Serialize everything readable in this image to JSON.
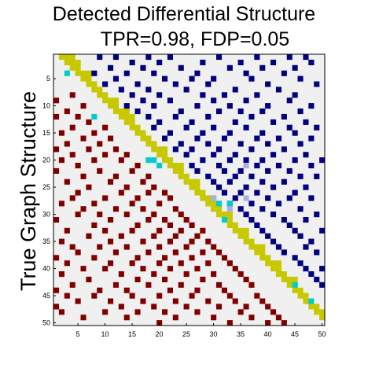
{
  "chart_data": {
    "type": "heatmap",
    "title_lines": [
      "Detected Differential Structure",
      "TPR=0.98, FDP=0.05"
    ],
    "xlabel": "",
    "ylabel": "True Graph Structure",
    "size": 50,
    "x_ticks": [
      5,
      10,
      15,
      20,
      25,
      30,
      35,
      40,
      45,
      50
    ],
    "y_ticks": [
      5,
      10,
      15,
      20,
      25,
      30,
      35,
      40,
      45,
      50
    ],
    "colors": {
      "background": "#f0f0f0",
      "detected_edge": "#000080",
      "true_edge": "#800000",
      "diagonal": "#c8c800",
      "false_positive": "#00cccc",
      "missed": "#aab0e6"
    },
    "diagonal_band": [
      [
        2,
        3,
        4
      ],
      [
        3,
        4,
        5
      ],
      [
        4,
        5
      ],
      [
        5,
        6,
        7
      ],
      [
        6,
        7
      ],
      [
        7,
        8
      ],
      [
        8,
        9
      ],
      [
        9,
        10
      ],
      [
        10,
        11,
        12
      ],
      [
        11,
        12
      ],
      [
        12,
        13,
        14
      ],
      [
        13,
        14,
        15
      ],
      [
        14,
        15
      ],
      [
        15,
        16
      ],
      [
        16,
        17
      ],
      [
        17,
        18
      ],
      [
        18,
        19
      ],
      [
        19,
        20,
        21
      ],
      [
        20,
        21
      ],
      [
        21,
        22
      ],
      [
        22,
        23,
        24
      ],
      [
        23,
        24
      ],
      [
        24,
        25
      ],
      [
        25,
        26,
        27
      ],
      [
        26,
        27
      ],
      [
        27,
        28
      ],
      [
        28,
        29,
        30
      ],
      [
        29,
        30
      ],
      [
        30,
        31
      ],
      [
        31,
        32,
        33
      ],
      [
        32,
        33
      ],
      [
        33,
        34
      ],
      [
        34,
        35,
        36
      ],
      [
        35,
        36
      ],
      [
        36,
        37
      ],
      [
        37,
        38,
        39
      ],
      [
        38,
        39
      ],
      [
        39,
        40
      ],
      [
        40,
        41,
        42
      ],
      [
        41,
        42
      ],
      [
        42,
        43
      ],
      [
        43,
        44,
        45
      ],
      [
        44,
        45
      ],
      [
        45,
        46
      ],
      [
        46,
        47
      ],
      [
        47,
        48
      ],
      [
        48,
        49
      ],
      [
        49,
        50
      ],
      [
        50
      ],
      []
    ],
    "detected_cells": [
      [
        1,
        9
      ],
      [
        1,
        12
      ],
      [
        1,
        18
      ],
      [
        1,
        22
      ],
      [
        1,
        31
      ],
      [
        1,
        38
      ],
      [
        1,
        44
      ],
      [
        1,
        47
      ],
      [
        2,
        15
      ],
      [
        2,
        20
      ],
      [
        2,
        28
      ],
      [
        2,
        35
      ],
      [
        2,
        41
      ],
      [
        2,
        48
      ],
      [
        3,
        11
      ],
      [
        3,
        17
      ],
      [
        3,
        24
      ],
      [
        3,
        33
      ],
      [
        3,
        39
      ],
      [
        3,
        45
      ],
      [
        4,
        8
      ],
      [
        4,
        14
      ],
      [
        4,
        19
      ],
      [
        4,
        27
      ],
      [
        4,
        36
      ],
      [
        4,
        43
      ],
      [
        5,
        12
      ],
      [
        5,
        21
      ],
      [
        5,
        26
      ],
      [
        5,
        30
      ],
      [
        5,
        37
      ],
      [
        5,
        46
      ],
      [
        6,
        10
      ],
      [
        6,
        16
      ],
      [
        6,
        23
      ],
      [
        6,
        29
      ],
      [
        6,
        40
      ],
      [
        6,
        49
      ],
      [
        7,
        13
      ],
      [
        7,
        18
      ],
      [
        7,
        25
      ],
      [
        7,
        34
      ],
      [
        7,
        42
      ],
      [
        8,
        15
      ],
      [
        8,
        20
      ],
      [
        8,
        28
      ],
      [
        8,
        32
      ],
      [
        8,
        38
      ],
      [
        8,
        45
      ],
      [
        9,
        17
      ],
      [
        9,
        22
      ],
      [
        9,
        30
      ],
      [
        9,
        36
      ],
      [
        9,
        44
      ],
      [
        10,
        14
      ],
      [
        10,
        19
      ],
      [
        10,
        27
      ],
      [
        10,
        33
      ],
      [
        10,
        40
      ],
      [
        10,
        48
      ],
      [
        11,
        16
      ],
      [
        11,
        24
      ],
      [
        11,
        31
      ],
      [
        11,
        35
      ],
      [
        11,
        39
      ],
      [
        11,
        46
      ],
      [
        12,
        18
      ],
      [
        12,
        23
      ],
      [
        12,
        29
      ],
      [
        12,
        37
      ],
      [
        12,
        43
      ],
      [
        13,
        20
      ],
      [
        13,
        26
      ],
      [
        13,
        34
      ],
      [
        13,
        41
      ],
      [
        13,
        47
      ],
      [
        14,
        19
      ],
      [
        14,
        25
      ],
      [
        14,
        30
      ],
      [
        14,
        36
      ],
      [
        14,
        44
      ],
      [
        14,
        49
      ],
      [
        15,
        22
      ],
      [
        15,
        28
      ],
      [
        15,
        33
      ],
      [
        15,
        39
      ],
      [
        15,
        45
      ],
      [
        16,
        21
      ],
      [
        16,
        27
      ],
      [
        16,
        32
      ],
      [
        16,
        38
      ],
      [
        16,
        42
      ],
      [
        16,
        48
      ],
      [
        17,
        24
      ],
      [
        17,
        29
      ],
      [
        17,
        35
      ],
      [
        17,
        40
      ],
      [
        17,
        46
      ],
      [
        18,
        23
      ],
      [
        18,
        26
      ],
      [
        18,
        31
      ],
      [
        18,
        37
      ],
      [
        18,
        43
      ],
      [
        19,
        25
      ],
      [
        19,
        30
      ],
      [
        19,
        34
      ],
      [
        19,
        41
      ],
      [
        19,
        47
      ],
      [
        20,
        28
      ],
      [
        20,
        33
      ],
      [
        20,
        36
      ],
      [
        20,
        39
      ],
      [
        20,
        45
      ],
      [
        20,
        50
      ],
      [
        21,
        26
      ],
      [
        21,
        31
      ],
      [
        21,
        38
      ],
      [
        21,
        42
      ],
      [
        21,
        48
      ],
      [
        22,
        27
      ],
      [
        22,
        32
      ],
      [
        22,
        35
      ],
      [
        22,
        40
      ],
      [
        22,
        44
      ],
      [
        23,
        29
      ],
      [
        23,
        34
      ],
      [
        23,
        37
      ],
      [
        23,
        46
      ],
      [
        23,
        49
      ],
      [
        24,
        30
      ],
      [
        24,
        33
      ],
      [
        24,
        39
      ],
      [
        24,
        43
      ],
      [
        25,
        31
      ],
      [
        25,
        36
      ],
      [
        25,
        41
      ],
      [
        25,
        47
      ],
      [
        26,
        32
      ],
      [
        26,
        35
      ],
      [
        26,
        38
      ],
      [
        26,
        45
      ],
      [
        27,
        34
      ],
      [
        27,
        40
      ],
      [
        27,
        44
      ],
      [
        27,
        48
      ],
      [
        28,
        33
      ],
      [
        28,
        37
      ],
      [
        28,
        42
      ],
      [
        29,
        35
      ],
      [
        29,
        39
      ],
      [
        29,
        46
      ],
      [
        30,
        36
      ],
      [
        30,
        41
      ],
      [
        30,
        49
      ],
      [
        31,
        37
      ],
      [
        31,
        43
      ],
      [
        31,
        47
      ],
      [
        32,
        38
      ],
      [
        32,
        44
      ],
      [
        33,
        39
      ],
      [
        33,
        45
      ],
      [
        33,
        50
      ],
      [
        34,
        40
      ],
      [
        34,
        46
      ],
      [
        35,
        41
      ],
      [
        35,
        48
      ],
      [
        36,
        42
      ],
      [
        36,
        47
      ],
      [
        37,
        43
      ],
      [
        37,
        49
      ],
      [
        38,
        45
      ],
      [
        39,
        46
      ],
      [
        40,
        47
      ],
      [
        40,
        50
      ],
      [
        41,
        48
      ],
      [
        42,
        49
      ],
      [
        43,
        50
      ]
    ],
    "true_cells": [
      [
        9,
        1
      ],
      [
        12,
        1
      ],
      [
        18,
        1
      ],
      [
        22,
        1
      ],
      [
        31,
        1
      ],
      [
        38,
        1
      ],
      [
        44,
        1
      ],
      [
        47,
        1
      ],
      [
        15,
        2
      ],
      [
        20,
        2
      ],
      [
        28,
        2
      ],
      [
        35,
        2
      ],
      [
        41,
        2
      ],
      [
        48,
        2
      ],
      [
        11,
        3
      ],
      [
        17,
        3
      ],
      [
        24,
        3
      ],
      [
        33,
        3
      ],
      [
        39,
        3
      ],
      [
        45,
        3
      ],
      [
        8,
        4
      ],
      [
        14,
        4
      ],
      [
        19,
        4
      ],
      [
        27,
        4
      ],
      [
        36,
        4
      ],
      [
        43,
        4
      ],
      [
        12,
        5
      ],
      [
        21,
        5
      ],
      [
        26,
        5
      ],
      [
        30,
        5
      ],
      [
        37,
        5
      ],
      [
        46,
        5
      ],
      [
        10,
        6
      ],
      [
        16,
        6
      ],
      [
        23,
        6
      ],
      [
        29,
        6
      ],
      [
        40,
        6
      ],
      [
        49,
        6
      ],
      [
        13,
        7
      ],
      [
        18,
        7
      ],
      [
        25,
        7
      ],
      [
        34,
        7
      ],
      [
        42,
        7
      ],
      [
        15,
        8
      ],
      [
        20,
        8
      ],
      [
        28,
        8
      ],
      [
        32,
        8
      ],
      [
        38,
        8
      ],
      [
        45,
        8
      ],
      [
        17,
        9
      ],
      [
        22,
        9
      ],
      [
        30,
        9
      ],
      [
        36,
        9
      ],
      [
        44,
        9
      ],
      [
        14,
        10
      ],
      [
        19,
        10
      ],
      [
        27,
        10
      ],
      [
        33,
        10
      ],
      [
        40,
        10
      ],
      [
        48,
        10
      ],
      [
        16,
        11
      ],
      [
        24,
        11
      ],
      [
        31,
        11
      ],
      [
        35,
        11
      ],
      [
        39,
        11
      ],
      [
        46,
        11
      ],
      [
        18,
        12
      ],
      [
        23,
        12
      ],
      [
        29,
        12
      ],
      [
        37,
        12
      ],
      [
        43,
        12
      ],
      [
        20,
        13
      ],
      [
        26,
        13
      ],
      [
        34,
        13
      ],
      [
        41,
        13
      ],
      [
        47,
        13
      ],
      [
        19,
        14
      ],
      [
        25,
        14
      ],
      [
        30,
        14
      ],
      [
        36,
        14
      ],
      [
        44,
        14
      ],
      [
        49,
        14
      ],
      [
        22,
        15
      ],
      [
        28,
        15
      ],
      [
        33,
        15
      ],
      [
        39,
        15
      ],
      [
        45,
        15
      ],
      [
        21,
        16
      ],
      [
        27,
        16
      ],
      [
        32,
        16
      ],
      [
        38,
        16
      ],
      [
        42,
        16
      ],
      [
        48,
        16
      ],
      [
        24,
        17
      ],
      [
        29,
        17
      ],
      [
        35,
        17
      ],
      [
        40,
        17
      ],
      [
        46,
        17
      ],
      [
        23,
        18
      ],
      [
        26,
        18
      ],
      [
        31,
        18
      ],
      [
        37,
        18
      ],
      [
        43,
        18
      ],
      [
        25,
        19
      ],
      [
        30,
        19
      ],
      [
        34,
        19
      ],
      [
        41,
        19
      ],
      [
        47,
        19
      ],
      [
        28,
        20
      ],
      [
        33,
        20
      ],
      [
        36,
        20
      ],
      [
        39,
        20
      ],
      [
        45,
        20
      ],
      [
        50,
        20
      ],
      [
        26,
        21
      ],
      [
        31,
        21
      ],
      [
        38,
        21
      ],
      [
        42,
        21
      ],
      [
        48,
        21
      ],
      [
        27,
        22
      ],
      [
        32,
        22
      ],
      [
        35,
        22
      ],
      [
        40,
        22
      ],
      [
        44,
        22
      ],
      [
        29,
        23
      ],
      [
        34,
        23
      ],
      [
        37,
        23
      ],
      [
        46,
        23
      ],
      [
        49,
        23
      ],
      [
        30,
        24
      ],
      [
        33,
        24
      ],
      [
        39,
        24
      ],
      [
        43,
        24
      ],
      [
        31,
        25
      ],
      [
        36,
        25
      ],
      [
        41,
        25
      ],
      [
        47,
        25
      ],
      [
        32,
        26
      ],
      [
        35,
        26
      ],
      [
        38,
        26
      ],
      [
        45,
        26
      ],
      [
        34,
        27
      ],
      [
        40,
        27
      ],
      [
        44,
        27
      ],
      [
        48,
        27
      ],
      [
        33,
        28
      ],
      [
        37,
        28
      ],
      [
        42,
        28
      ],
      [
        35,
        29
      ],
      [
        39,
        29
      ],
      [
        46,
        29
      ],
      [
        36,
        30
      ],
      [
        41,
        30
      ],
      [
        49,
        30
      ],
      [
        37,
        31
      ],
      [
        43,
        31
      ],
      [
        47,
        31
      ],
      [
        38,
        32
      ],
      [
        44,
        32
      ],
      [
        39,
        33
      ],
      [
        45,
        33
      ],
      [
        50,
        33
      ],
      [
        40,
        34
      ],
      [
        46,
        34
      ],
      [
        41,
        35
      ],
      [
        48,
        35
      ],
      [
        42,
        36
      ],
      [
        47,
        36
      ],
      [
        43,
        37
      ],
      [
        49,
        37
      ],
      [
        45,
        38
      ],
      [
        46,
        39
      ],
      [
        47,
        40
      ],
      [
        50,
        40
      ],
      [
        48,
        41
      ],
      [
        49,
        42
      ],
      [
        50,
        43
      ]
    ],
    "false_positive_cells": [
      [
        4,
        3
      ],
      [
        12,
        8
      ],
      [
        20,
        18
      ],
      [
        20,
        19
      ],
      [
        21,
        20
      ],
      [
        28,
        31
      ],
      [
        28,
        33
      ],
      [
        31,
        32
      ],
      [
        43,
        45
      ],
      [
        46,
        48
      ]
    ],
    "missed_cells": [
      [
        21,
        36
      ],
      [
        27,
        30
      ],
      [
        27,
        36
      ],
      [
        29,
        33
      ]
    ]
  }
}
